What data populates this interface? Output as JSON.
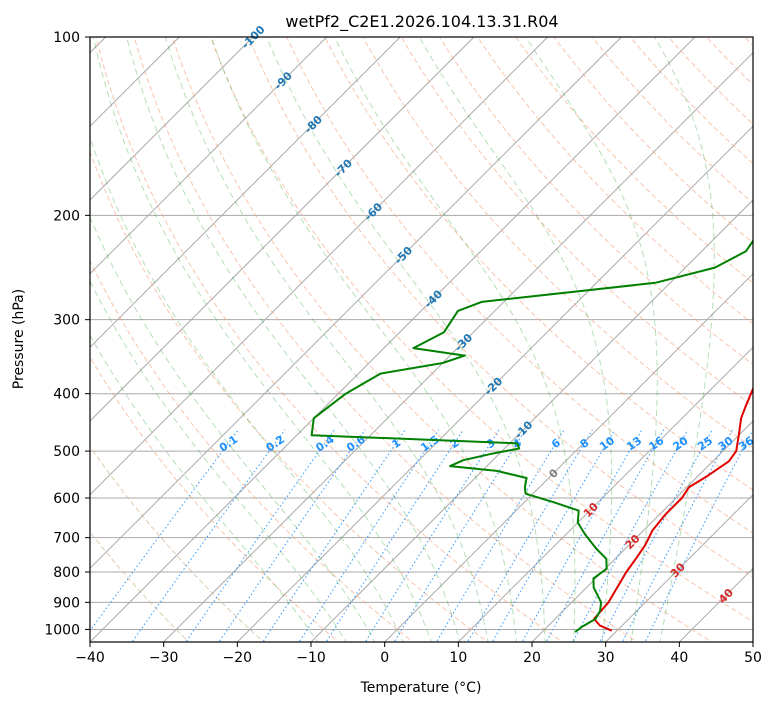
{
  "chart_data": {
    "type": "line",
    "title": "wetPf2_C2E1.2026.104.13.31.R04",
    "xlabel": "Temperature (°C)",
    "ylabel": "Pressure (hPa)",
    "xlim": [
      -40,
      50
    ],
    "ylim": [
      1050,
      100
    ],
    "x_ticks": [
      "−40",
      "−30",
      "−20",
      "−10",
      "0",
      "10",
      "20",
      "30",
      "40",
      "50"
    ],
    "x_tick_values": [
      -40,
      -30,
      -20,
      -10,
      0,
      10,
      20,
      30,
      40,
      50
    ],
    "y_ticks": [
      "100",
      "200",
      "300",
      "400",
      "500",
      "600",
      "700",
      "800",
      "900",
      "1000"
    ],
    "y_tick_values": [
      100,
      200,
      300,
      400,
      500,
      600,
      700,
      800,
      900,
      1000
    ],
    "grid": true,
    "series": [
      {
        "name": "temperature",
        "color": "#e00000",
        "points": [
          [
            1005,
            29.3
          ],
          [
            985,
            27.0
          ],
          [
            960,
            25.3
          ],
          [
            900,
            25.0
          ],
          [
            840,
            24.0
          ],
          [
            800,
            23.3
          ],
          [
            760,
            22.8
          ],
          [
            720,
            22.2
          ],
          [
            680,
            21.2
          ],
          [
            640,
            20.8
          ],
          [
            600,
            20.8
          ],
          [
            575,
            20.3
          ],
          [
            550,
            21.3
          ],
          [
            520,
            22.2
          ],
          [
            500,
            21.8
          ],
          [
            470,
            20.0
          ],
          [
            440,
            18.0
          ],
          [
            420,
            17.0
          ],
          [
            390,
            15.5
          ],
          [
            360,
            12.8
          ],
          [
            330,
            10.5
          ],
          [
            300,
            8.0
          ],
          [
            270,
            6.0
          ],
          [
            240,
            3.5
          ],
          [
            210,
            0.5
          ],
          [
            190,
            -1.5
          ],
          [
            170,
            0.0
          ],
          [
            155,
            3.0
          ],
          [
            140,
            5.0
          ],
          [
            125,
            5.0
          ],
          [
            112,
            5.8
          ],
          [
            100,
            6.0
          ]
        ]
      },
      {
        "name": "dewpoint",
        "color": "#008000",
        "points": [
          [
            1010,
            24.5
          ],
          [
            990,
            24.7
          ],
          [
            960,
            25.5
          ],
          [
            930,
            25.0
          ],
          [
            900,
            24.0
          ],
          [
            850,
            21.0
          ],
          [
            820,
            19.7
          ],
          [
            790,
            20.2
          ],
          [
            760,
            18.8
          ],
          [
            730,
            16.0
          ],
          [
            690,
            12.5
          ],
          [
            660,
            10.0
          ],
          [
            630,
            8.5
          ],
          [
            610,
            4.0
          ],
          [
            590,
            -1.0
          ],
          [
            575,
            -2.0
          ],
          [
            555,
            -3.0
          ],
          [
            540,
            -8.0
          ],
          [
            530,
            -15.0
          ],
          [
            518,
            -14.0
          ],
          [
            505,
            -11.0
          ],
          [
            495,
            -8.0
          ],
          [
            485,
            -9.0
          ],
          [
            470,
            -38.0
          ],
          [
            440,
            -40.0
          ],
          [
            400,
            -39.0
          ],
          [
            370,
            -37.0
          ],
          [
            355,
            -30.0
          ],
          [
            345,
            -28.0
          ],
          [
            335,
            -36.0
          ],
          [
            315,
            -34.0
          ],
          [
            290,
            -35.0
          ],
          [
            280,
            -33.0
          ],
          [
            260,
            -12.0
          ],
          [
            245,
            -6.0
          ],
          [
            230,
            -4.0
          ],
          [
            210,
            -5.0
          ],
          [
            190,
            -7.0
          ],
          [
            170,
            -10.0
          ],
          [
            150,
            -13.0
          ],
          [
            135,
            -12.0
          ],
          [
            120,
            -8.0
          ],
          [
            110,
            -6.0
          ],
          [
            100,
            -5.0
          ]
        ]
      }
    ],
    "dry_adiabat_labels": [
      "-100",
      "-90",
      "-80",
      "-70",
      "-60",
      "-50",
      "-40",
      "-30",
      "-20",
      "-10",
      "0",
      "10",
      "20",
      "30",
      "40"
    ],
    "dry_adiabat_label_colors": [
      "#1f77b4",
      "#1f77b4",
      "#1f77b4",
      "#1f77b4",
      "#1f77b4",
      "#1f77b4",
      "#1f77b4",
      "#1f77b4",
      "#1f77b4",
      "#1f77b4",
      "#7f7f7f",
      "#d62728",
      "#d62728",
      "#d62728",
      "#d62728"
    ],
    "mixing_ratio_labels": [
      "0.1",
      "0.2",
      "0.4",
      "0.6",
      "1",
      "1.5",
      "2",
      "3",
      "4",
      "6",
      "8",
      "10",
      "13",
      "16",
      "20",
      "25",
      "30",
      "36"
    ],
    "mixing_ratio_label_color": "#1e90ff"
  }
}
